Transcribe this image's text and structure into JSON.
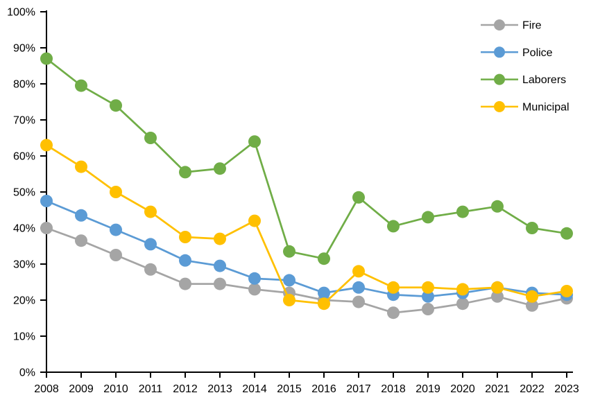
{
  "chart_data": {
    "type": "line",
    "title": "",
    "xlabel": "",
    "ylabel": "",
    "grid": false,
    "background": "#FFFFFF",
    "axis_color": "#000000",
    "legend_position": "top-right",
    "ylim": [
      0,
      100
    ],
    "ytick_step": 10,
    "y_tick_values": [
      0,
      10,
      20,
      30,
      40,
      50,
      60,
      70,
      80,
      90,
      100
    ],
    "y_tick_labels": [
      "0%",
      "10%",
      "20%",
      "30%",
      "40%",
      "50%",
      "60%",
      "70%",
      "80%",
      "90%",
      "100%"
    ],
    "x": [
      2008,
      2009,
      2010,
      2011,
      2012,
      2013,
      2014,
      2015,
      2016,
      2017,
      2018,
      2019,
      2020,
      2021,
      2022,
      2023
    ],
    "x_tick_labels": [
      "2008",
      "2009",
      "2010",
      "2011",
      "2012",
      "2013",
      "2014",
      "2015",
      "2016",
      "2017",
      "2018",
      "2019",
      "2020",
      "2021",
      "2022",
      "2023"
    ],
    "series": [
      {
        "name": "Fire",
        "color": "#A5A5A5",
        "values": [
          40,
          36.5,
          32.5,
          28.5,
          24.5,
          24.5,
          23,
          22,
          20,
          19.5,
          16.5,
          17.5,
          19,
          21,
          18.5,
          20.5
        ]
      },
      {
        "name": "Police",
        "color": "#5B9BD5",
        "values": [
          47.5,
          43.5,
          39.5,
          35.5,
          31,
          29.5,
          26,
          25.5,
          22,
          23.5,
          21.5,
          21,
          22,
          23.5,
          22,
          21.5
        ]
      },
      {
        "name": "Laborers",
        "color": "#70AD47",
        "values": [
          87,
          79.5,
          74,
          65,
          55.5,
          56.5,
          64,
          33.5,
          31.5,
          48.5,
          40.5,
          43,
          44.5,
          46,
          40,
          38.5
        ]
      },
      {
        "name": "Municipal",
        "color": "#FFC000",
        "values": [
          63,
          57,
          50,
          44.5,
          37.5,
          37,
          42,
          20,
          19,
          28,
          23.5,
          23.5,
          23,
          23.5,
          21,
          22.5
        ]
      }
    ]
  }
}
